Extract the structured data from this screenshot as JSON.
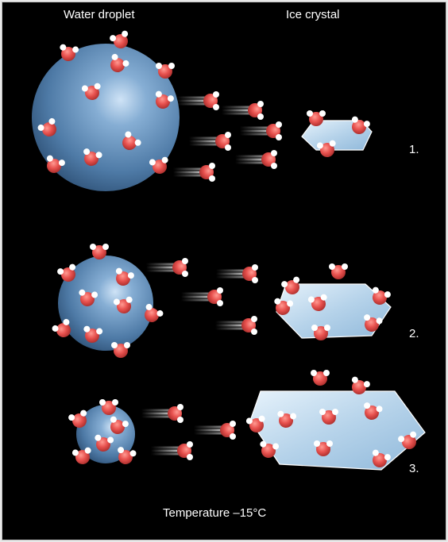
{
  "labels": {
    "water_droplet": "Water droplet",
    "ice_crystal": "Ice crystal",
    "temperature": "Temperature –15°C"
  },
  "stages": [
    {
      "number": "1.",
      "droplet_relative_size": "large",
      "crystal_relative_size": "small"
    },
    {
      "number": "2.",
      "droplet_relative_size": "medium",
      "crystal_relative_size": "medium"
    },
    {
      "number": "3.",
      "droplet_relative_size": "small",
      "crystal_relative_size": "large"
    }
  ],
  "colors": {
    "background": "#000000",
    "oxygen_atom": "#e8524f",
    "hydrogen_atom": "#ffffff",
    "droplet": "#7ea7cf",
    "ice": "#cfe4f4",
    "text": "#ffffff"
  }
}
